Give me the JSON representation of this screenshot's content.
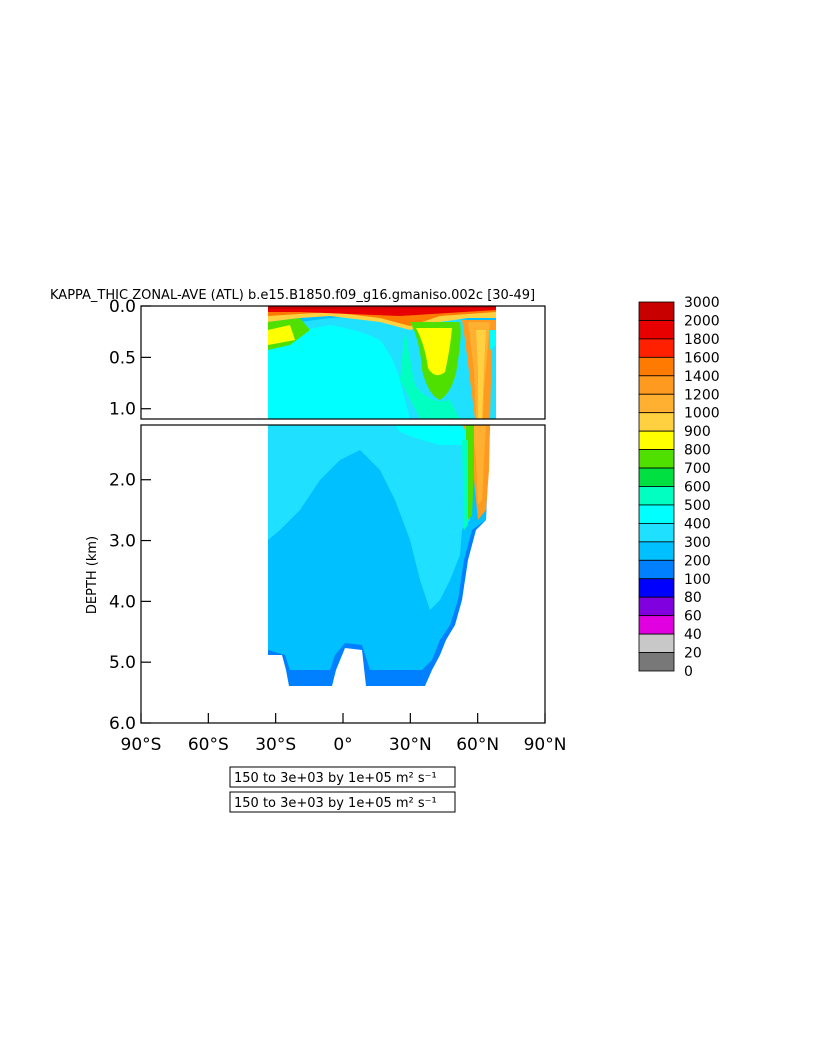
{
  "chart_data": {
    "type": "heatmap",
    "title": "KAPPA_THIC ZONAL-AVE (ATL) b.e15.B1850.f09_g16.gmaniso.002c [30-49]",
    "ylabel": "DEPTH (km)",
    "xlabel": "",
    "x_ticks": [
      "90°S",
      "60°S",
      "30°S",
      "0°",
      "30°N",
      "60°N",
      "90°N"
    ],
    "xlim": [
      -90,
      90
    ],
    "upper_panel": {
      "ylim": [
        0,
        1.1
      ],
      "y_ticks": [
        "0.0",
        "0.5",
        "1.0"
      ],
      "y_tick_values": [
        0,
        0.5,
        1.0
      ]
    },
    "lower_panel": {
      "ylim": [
        1.1,
        6.0
      ],
      "y_ticks": [
        "2.0",
        "3.0",
        "4.0",
        "5.0",
        "6.0"
      ],
      "y_tick_values": [
        2.0,
        3.0,
        4.0,
        5.0,
        6.0
      ]
    },
    "colorbar": {
      "levels": [
        "3000",
        "2000",
        "1800",
        "1600",
        "1400",
        "1200",
        "1000",
        "900",
        "800",
        "700",
        "600",
        "500",
        "400",
        "300",
        "200",
        "100",
        "80",
        "60",
        "40",
        "20",
        "0"
      ],
      "colors": [
        "#c80000",
        "#e80000",
        "#ff2000",
        "#ff7a00",
        "#ff9a20",
        "#ffb030",
        "#ffd040",
        "#ffff00",
        "#50e000",
        "#00e040",
        "#00ffc0",
        "#00ffff",
        "#20e0ff",
        "#00c0ff",
        "#0080ff",
        "#0000ff",
        "#8000e0",
        "#e000e0",
        "#c8c8c8",
        "#787878"
      ]
    },
    "contour_info": [
      "150 to 3e+03 by 1e+05 m² s⁻¹",
      "150 to 3e+03 by 1e+05 m² s⁻¹"
    ]
  }
}
